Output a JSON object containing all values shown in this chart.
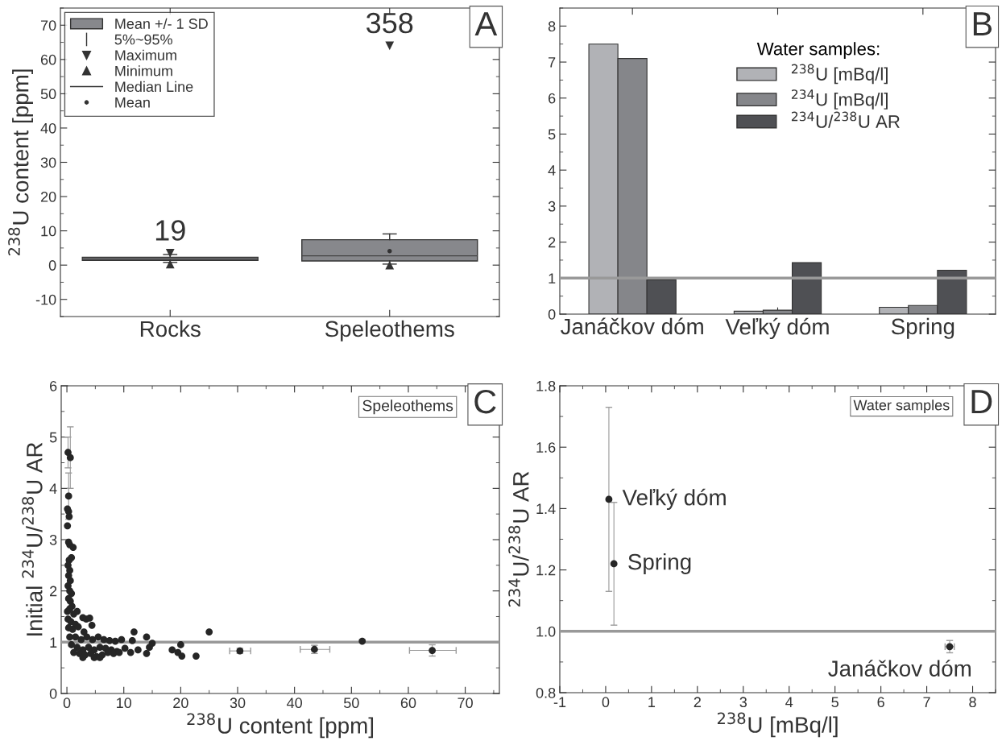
{
  "chart_data": [
    {
      "type": "box",
      "ylabel": "$^{238}$U content [ppm]",
      "categories": [
        "Rocks",
        "Speleothems"
      ],
      "ylim": [
        -15,
        75
      ],
      "yticks": [
        -10,
        0,
        10,
        20,
        30,
        40,
        50,
        60,
        70
      ],
      "legend": "top left",
      "series": [
        {
          "name": "Mean +/- 1 SD",
          "type": "box",
          "color": "#87888c",
          "boxes": [
            {
              "low": 0.8,
              "q1": 1.4,
              "median": 1.8,
              "q3": 2.3,
              "high": 3.1
            },
            {
              "low": 0.3,
              "q1": 1.2,
              "median": 2.7,
              "q3": 7.4,
              "high": 9.1,
              "mean": 4.1
            }
          ]
        },
        {
          "name": "Maximum",
          "type": "scatter",
          "marker": "triangle_down",
          "color": "#333333",
          "values": [
            3.5,
            64
          ]
        },
        {
          "name": "Minimum",
          "type": "scatter",
          "marker": "triangle",
          "color": "#333333",
          "values": [
            0.3,
            0
          ]
        }
      ],
      "annotations": [
        "A",
        "5%~95%",
        "Median Line",
        "Mean",
        {
          "text": "19",
          "x": "Rocks",
          "y": 3.5
        },
        {
          "text": "358",
          "x": "Speleothems",
          "y": 64
        }
      ]
    },
    {
      "type": "bar",
      "categories": [
        "Janáčkov dóm",
        "Veľký dóm",
        "Spring"
      ],
      "ylim": [
        0,
        8.5
      ],
      "yticks": [
        0,
        1,
        2,
        3,
        4,
        5,
        6,
        7,
        8
      ],
      "legend": "top right",
      "legend_title": "Water samples:",
      "series": [
        {
          "name": "$^{238}$U [mBq/l]",
          "color": "#b1b2b6",
          "values": [
            7.5,
            0.08,
            0.19
          ]
        },
        {
          "name": "$^{234}$U [mBq/l]",
          "color": "#85868a",
          "values": [
            7.1,
            0.11,
            0.24
          ]
        },
        {
          "name": "$^{234}$U/$^{238}$U AR",
          "color": "#4f5054",
          "values": [
            0.95,
            1.43,
            1.22
          ]
        }
      ],
      "ref_lines": [
        {
          "axis": "y",
          "value": 1,
          "color": "#999999"
        }
      ],
      "annotations": [
        "B"
      ]
    },
    {
      "type": "scatter",
      "xlabel": "$^{238}$U content [ppm]",
      "ylabel": "Initial $^{234}$U/$^{238}$U AR",
      "xlim": [
        -1,
        76
      ],
      "xticks": [
        0,
        10,
        20,
        30,
        40,
        50,
        60,
        70
      ],
      "ylim": [
        0,
        6
      ],
      "yticks": [
        0,
        1,
        2,
        3,
        4,
        5,
        6
      ],
      "marker": "circle",
      "color": "#262626",
      "x": [
        0.2,
        0.6,
        0.3,
        0.1,
        0.3,
        0.4,
        0.1,
        0.3,
        0.5,
        1.1,
        0.8,
        0.4,
        0.2,
        0.5,
        0.3,
        0.6,
        0.2,
        0.5,
        0.8,
        0.3,
        0.6,
        0.9,
        0.1,
        0.5,
        1.2,
        1.8,
        0.2,
        0.7,
        1.5,
        2.8,
        3.4,
        4.0,
        4.4,
        0.3,
        1.0,
        2.0,
        3.0,
        0.5,
        1.5,
        2.5,
        3.5,
        4.5,
        5.5,
        6.5,
        7.5,
        8.5,
        9.6,
        0.8,
        1.8,
        2.8,
        3.8,
        4.8,
        5.8,
        6.8,
        7.8,
        8.8,
        1.2,
        2.2,
        3.2,
        4.2,
        5.2,
        6.2,
        7.2,
        8.2,
        9.2,
        2.8,
        4.8,
        5.8,
        10.2,
        11.2,
        11.8,
        11.5,
        12.5,
        14.0,
        14.0,
        14.5,
        15.0,
        18.5,
        19.5,
        20.0,
        20.2,
        22.7,
        25.0,
        30.4,
        43.5,
        51.9,
        64.2
      ],
      "values": [
        4.7,
        4.6,
        3.85,
        3.6,
        3.55,
        3.45,
        3.27,
        2.95,
        2.9,
        2.85,
        2.65,
        2.6,
        2.5,
        2.4,
        2.3,
        2.2,
        2.1,
        2.0,
        1.95,
        1.85,
        1.8,
        1.7,
        1.6,
        1.65,
        1.55,
        1.6,
        1.45,
        1.4,
        1.35,
        1.48,
        1.45,
        1.47,
        1.33,
        1.28,
        1.25,
        1.3,
        1.2,
        1.1,
        1.1,
        1.05,
        1.1,
        1.05,
        1.1,
        1.05,
        1.03,
        1.02,
        1.05,
        0.95,
        0.9,
        0.85,
        0.9,
        0.85,
        0.9,
        0.88,
        0.85,
        0.82,
        0.8,
        0.78,
        0.75,
        0.78,
        0.72,
        0.75,
        0.8,
        0.78,
        0.8,
        0.7,
        0.7,
        0.7,
        0.88,
        0.8,
        1.2,
        1.03,
        0.85,
        1.1,
        0.78,
        0.9,
        0.98,
        0.85,
        0.8,
        0.95,
        0.73,
        0.73,
        1.2,
        0.83,
        0.86,
        1.02,
        0.84
      ],
      "errors": [
        0.3,
        [
          4.0,
          5.2
        ],
        [
          3.4,
          4.3
        ],
        null,
        null,
        null,
        null,
        null,
        null,
        null,
        null,
        null,
        null,
        null,
        null,
        null,
        null,
        null,
        null,
        null,
        null,
        null,
        null,
        null,
        null,
        null,
        null,
        null,
        null,
        null,
        null,
        null,
        null,
        null,
        null,
        null,
        null,
        null,
        null,
        null,
        null,
        null,
        null,
        null,
        null,
        null,
        null,
        null,
        null,
        null,
        null,
        null,
        null,
        null,
        null,
        null,
        null,
        null,
        null,
        null,
        null,
        null,
        null,
        null,
        null,
        null,
        null,
        null,
        null,
        null,
        null,
        null,
        null,
        null,
        null,
        null,
        null,
        null,
        null,
        null,
        null,
        null,
        null,
        0.05,
        0.08,
        0.03,
        0.11
      ],
      "xerrors": [
        null,
        null,
        null,
        null,
        null,
        null,
        null,
        null,
        null,
        null,
        null,
        null,
        null,
        null,
        null,
        null,
        null,
        null,
        null,
        null,
        null,
        null,
        null,
        null,
        null,
        null,
        null,
        null,
        null,
        null,
        null,
        null,
        null,
        null,
        null,
        null,
        null,
        null,
        null,
        null,
        null,
        null,
        null,
        null,
        null,
        null,
        null,
        null,
        null,
        null,
        null,
        null,
        null,
        null,
        null,
        null,
        null,
        null,
        null,
        null,
        null,
        null,
        null,
        null,
        null,
        null,
        null,
        null,
        null,
        null,
        null,
        null,
        null,
        null,
        null,
        null,
        null,
        null,
        null,
        null,
        null,
        null,
        null,
        [
          28.6,
          32.3
        ],
        [
          41.0,
          46.2
        ],
        null,
        [
          60.2,
          68.4
        ]
      ],
      "ref_lines": [
        {
          "axis": "y",
          "value": 1,
          "color": "#999999"
        }
      ],
      "annotations": [
        "C",
        "Speleothems"
      ]
    },
    {
      "type": "scatter",
      "xlabel": "$^{238}$U [mBq/l]",
      "ylabel": "$^{234}$U/$^{238}$U AR",
      "xlim": [
        -1,
        8.5
      ],
      "xticks": [
        -1,
        0,
        1,
        2,
        3,
        4,
        5,
        6,
        7,
        8
      ],
      "ylim": [
        0.8,
        1.8
      ],
      "yticks": [
        0.8,
        {
          "value": 1,
          "label": "1.0"
        },
        1.2,
        1.4,
        1.6,
        1.8
      ],
      "marker": "circle",
      "color": "#262626",
      "x": [
        0.07,
        0.18,
        7.5
      ],
      "values": [
        1.43,
        1.22,
        0.95
      ],
      "errors": [
        [
          1.13,
          1.73
        ],
        [
          1.02,
          1.42
        ],
        0.02
      ],
      "xerrors": [
        null,
        null,
        0.1
      ],
      "ref_lines": [
        {
          "axis": "y",
          "value": 1,
          "color": "#999999"
        }
      ],
      "annotations": [
        "D",
        "Water samples",
        {
          "text": "Veľký dóm",
          "x": 0.07,
          "y": 1.43
        },
        {
          "text": "Spring",
          "x": 0.18,
          "y": 1.22
        },
        {
          "text": "Janáčkov dóm",
          "x": 7.5,
          "y": 0.95
        }
      ]
    }
  ]
}
